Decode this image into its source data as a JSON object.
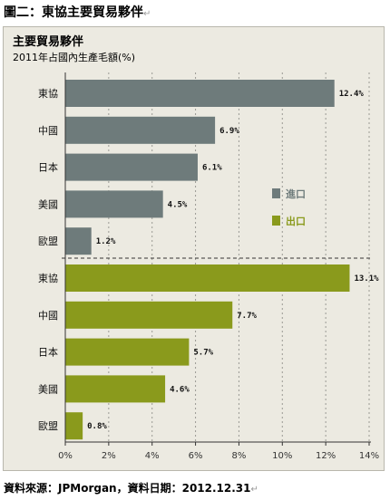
{
  "caption": "圖二：東協主要貿易夥伴",
  "source": "資料來源：JPMorgan，資料日期：2012.12.31",
  "return_mark": "↵",
  "colors": {
    "import": "#6e7b7b",
    "export": "#8a9a1c",
    "frame_bg": "#eceae1"
  },
  "chart_data": {
    "type": "bar",
    "orientation": "horizontal",
    "title": "主要貿易夥伴",
    "subtitle": "2011年占國內生產毛額(%)",
    "xlim": [
      0,
      14
    ],
    "x_ticks": [
      0,
      2,
      4,
      6,
      8,
      10,
      12,
      14
    ],
    "x_tick_labels": [
      "0%",
      "2%",
      "4%",
      "6%",
      "8%",
      "10%",
      "12%",
      "14%"
    ],
    "legend_position": "right-center",
    "series": [
      {
        "name": "進口",
        "color": "#6e7b7b",
        "categories": [
          "東協",
          "中國",
          "日本",
          "美國",
          "歐盟"
        ],
        "values": [
          12.4,
          6.9,
          6.1,
          4.5,
          1.2
        ],
        "labels": [
          "12.4%",
          "6.9%",
          "6.1%",
          "4.5%",
          "1.2%"
        ]
      },
      {
        "name": "出口",
        "color": "#8a9a1c",
        "categories": [
          "東協",
          "中國",
          "日本",
          "美國",
          "歐盟"
        ],
        "values": [
          13.1,
          7.7,
          5.7,
          4.6,
          0.8
        ],
        "labels": [
          "13.1%",
          "7.7%",
          "5.7%",
          "4.6%",
          "0.8%"
        ]
      }
    ]
  }
}
